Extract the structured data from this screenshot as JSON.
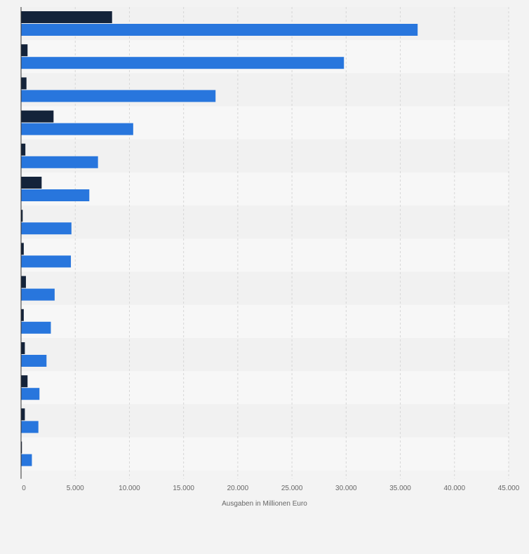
{
  "chart_data": {
    "type": "bar",
    "orientation": "horizontal",
    "xlabel": "Ausgaben in Millionen Euro",
    "xlim": [
      0,
      45000
    ],
    "x_ticks": [
      0,
      5000,
      10000,
      15000,
      20000,
      25000,
      30000,
      35000,
      40000,
      45000
    ],
    "x_tick_labels": [
      "0",
      "5.000",
      "10.000",
      "15.000",
      "20.000",
      "25.000",
      "30.000",
      "35.000",
      "40.000",
      "45.000"
    ],
    "grid": true,
    "legend": "none",
    "categories": [
      "",
      "",
      "",
      "",
      "",
      "",
      "",
      "",
      "",
      "",
      "",
      "",
      "",
      ""
    ],
    "series": [
      {
        "color": "#14233a",
        "values": [
          8400,
          600,
          500,
          3000,
          400,
          1900,
          150,
          250,
          450,
          250,
          350,
          600,
          350,
          80
        ]
      },
      {
        "color": "#2876dd",
        "values": [
          36600,
          29800,
          17950,
          10350,
          7100,
          6300,
          4650,
          4600,
          3100,
          2750,
          2350,
          1700,
          1600,
          1000
        ]
      }
    ],
    "colors": {
      "background": "#f3f3f3",
      "band_light": "#f7f7f7",
      "band_dark": "#f1f1f1",
      "gridline": "#d6d6d6",
      "axis_line": "#333333"
    }
  }
}
